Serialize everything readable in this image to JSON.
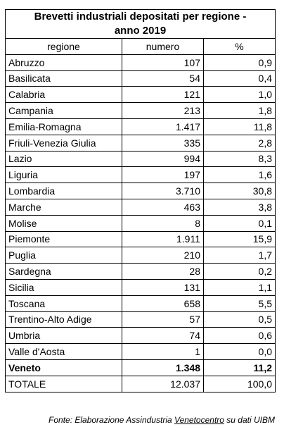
{
  "chart_data": {
    "type": "table",
    "title_line1": "Brevetti industriali depositati per regione -",
    "title_line2": "anno 2019",
    "columns": [
      "regione",
      "numero",
      "%"
    ],
    "rows": [
      {
        "regione": "Abruzzo",
        "numero": "107",
        "pct": "0,9",
        "bold": false
      },
      {
        "regione": "Basilicata",
        "numero": "54",
        "pct": "0,4",
        "bold": false
      },
      {
        "regione": "Calabria",
        "numero": "121",
        "pct": "1,0",
        "bold": false
      },
      {
        "regione": "Campania",
        "numero": "213",
        "pct": "1,8",
        "bold": false
      },
      {
        "regione": "Emilia-Romagna",
        "numero": "1.417",
        "pct": "11,8",
        "bold": false
      },
      {
        "regione": "Friuli-Venezia Giulia",
        "numero": "335",
        "pct": "2,8",
        "bold": false
      },
      {
        "regione": "Lazio",
        "numero": "994",
        "pct": "8,3",
        "bold": false
      },
      {
        "regione": "Liguria",
        "numero": "197",
        "pct": "1,6",
        "bold": false
      },
      {
        "regione": "Lombardia",
        "numero": "3.710",
        "pct": "30,8",
        "bold": false
      },
      {
        "regione": "Marche",
        "numero": "463",
        "pct": "3,8",
        "bold": false
      },
      {
        "regione": "Molise",
        "numero": "8",
        "pct": "0,1",
        "bold": false
      },
      {
        "regione": "Piemonte",
        "numero": "1.911",
        "pct": "15,9",
        "bold": false
      },
      {
        "regione": "Puglia",
        "numero": "210",
        "pct": "1,7",
        "bold": false
      },
      {
        "regione": "Sardegna",
        "numero": "28",
        "pct": "0,2",
        "bold": false
      },
      {
        "regione": "Sicilia",
        "numero": "131",
        "pct": "1,1",
        "bold": false
      },
      {
        "regione": "Toscana",
        "numero": "658",
        "pct": "5,5",
        "bold": false
      },
      {
        "regione": "Trentino-Alto Adige",
        "numero": "57",
        "pct": "0,5",
        "bold": false
      },
      {
        "regione": "Umbria",
        "numero": "74",
        "pct": "0,6",
        "bold": false
      },
      {
        "regione": "Valle d'Aosta",
        "numero": "1",
        "pct": "0,0",
        "bold": false
      },
      {
        "regione": "Veneto",
        "numero": "1.348",
        "pct": "11,2",
        "bold": true
      },
      {
        "regione": "TOTALE",
        "numero": "12.037",
        "pct": "100,0",
        "bold": false
      }
    ]
  },
  "source": {
    "prefix": "Fonte: Elaborazione  Assindustria  ",
    "underlined": "Venetocentro",
    "suffix": " su dati UIBM"
  }
}
